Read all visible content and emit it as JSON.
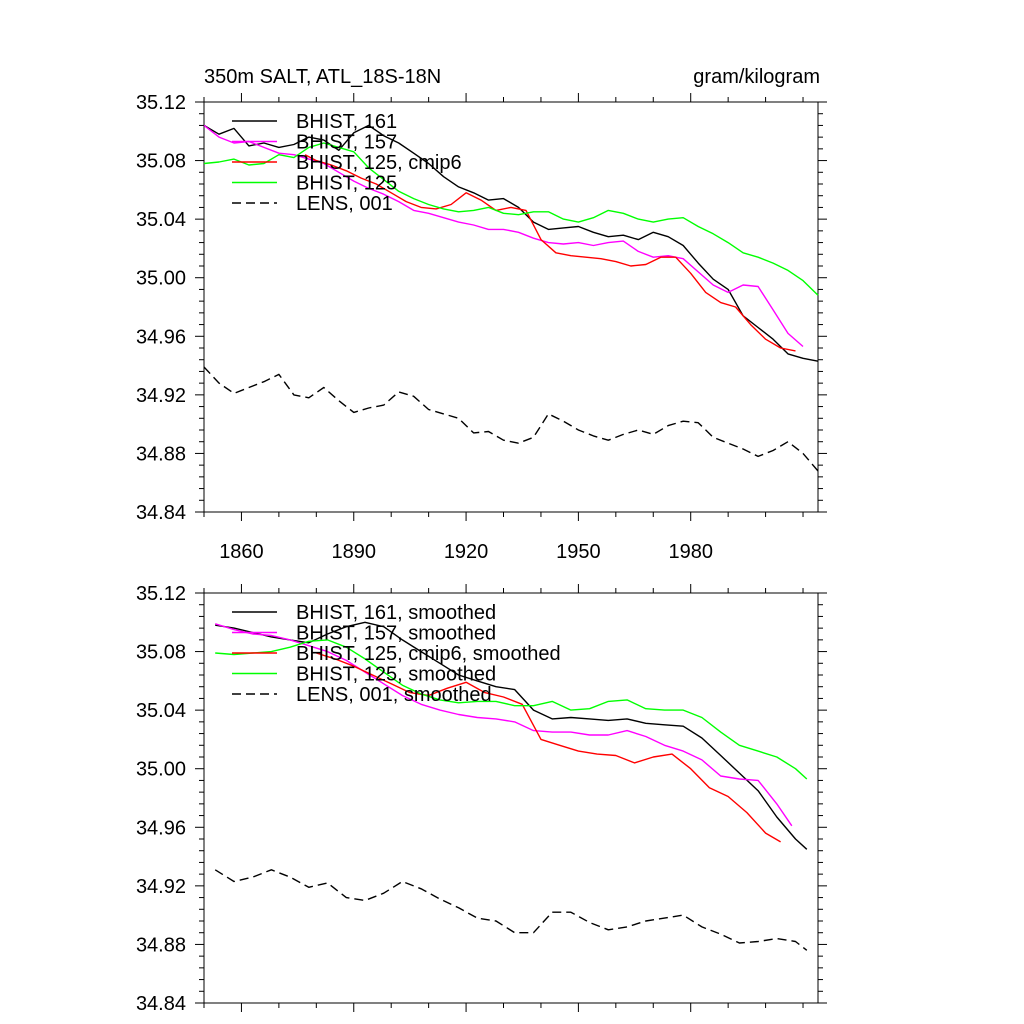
{
  "chart_data": [
    {
      "type": "line",
      "title": "350m SALT, ATL_18S-18N",
      "units": "gram/kilogram",
      "xlim": [
        1850,
        2014
      ],
      "ylim": [
        34.84,
        35.12
      ],
      "x_ticks": [
        1860,
        1890,
        1920,
        1950,
        1980
      ],
      "x_tick_labels": [
        "1860",
        "1890",
        "1920",
        "1950",
        "1980"
      ],
      "y_ticks": [
        34.84,
        34.88,
        34.92,
        34.96,
        35.0,
        35.04,
        35.08,
        35.12
      ],
      "y_tick_labels": [
        "34.84",
        "34.88",
        "34.92",
        "34.96",
        "35.00",
        "35.04",
        "35.08",
        "35.12"
      ],
      "legend_location": "top-left",
      "series": [
        {
          "name": "BHIST, 161",
          "color": "#000000",
          "dash": "solid",
          "x": [
            1850,
            1854,
            1858,
            1862,
            1866,
            1870,
            1874,
            1878,
            1882,
            1886,
            1890,
            1894,
            1898,
            1902,
            1906,
            1910,
            1914,
            1918,
            1922,
            1926,
            1930,
            1934,
            1938,
            1942,
            1946,
            1950,
            1954,
            1958,
            1962,
            1966,
            1970,
            1974,
            1978,
            1982,
            1986,
            1990,
            1994,
            1998,
            2002,
            2006,
            2010,
            2014
          ],
          "values": [
            35.104,
            35.098,
            35.102,
            35.09,
            35.092,
            35.089,
            35.091,
            35.096,
            35.094,
            35.087,
            35.099,
            35.104,
            35.097,
            35.092,
            35.085,
            35.078,
            35.069,
            35.062,
            35.058,
            35.053,
            35.054,
            35.048,
            35.038,
            35.033,
            35.034,
            35.035,
            35.031,
            35.028,
            35.029,
            35.026,
            35.031,
            35.028,
            35.022,
            35.01,
            34.999,
            34.992,
            34.974,
            34.966,
            34.958,
            34.948,
            34.945,
            34.943
          ]
        },
        {
          "name": "BHIST, 157",
          "color": "#ff00ff",
          "dash": "solid",
          "x": [
            1850,
            1854,
            1858,
            1862,
            1866,
            1870,
            1874,
            1878,
            1882,
            1886,
            1890,
            1894,
            1898,
            1902,
            1906,
            1910,
            1914,
            1918,
            1922,
            1926,
            1930,
            1934,
            1938,
            1942,
            1946,
            1950,
            1954,
            1958,
            1962,
            1966,
            1970,
            1974,
            1978,
            1982,
            1986,
            1990,
            1994,
            1998,
            2002,
            2006,
            2010
          ],
          "values": [
            35.104,
            35.096,
            35.092,
            35.093,
            35.089,
            35.085,
            35.084,
            35.081,
            35.078,
            35.072,
            35.066,
            35.061,
            35.057,
            35.052,
            35.046,
            35.044,
            35.041,
            35.038,
            35.036,
            35.033,
            35.033,
            35.031,
            35.027,
            35.024,
            35.023,
            35.024,
            35.022,
            35.024,
            35.025,
            35.018,
            35.014,
            35.015,
            35.013,
            35.004,
            34.995,
            34.99,
            34.995,
            34.994,
            34.978,
            34.962,
            34.953
          ]
        },
        {
          "name": "BHIST, 125, cmip6",
          "color": "#ff0000",
          "dash": "solid",
          "x": [
            1877,
            1880,
            1884,
            1888,
            1892,
            1896,
            1900,
            1904,
            1908,
            1912,
            1916,
            1920,
            1924,
            1928,
            1932,
            1936,
            1940,
            1944,
            1948,
            1952,
            1956,
            1960,
            1964,
            1968,
            1972,
            1976,
            1980,
            1984,
            1988,
            1992,
            1996,
            2000,
            2004,
            2008
          ],
          "values": [
            35.084,
            35.08,
            35.077,
            35.073,
            35.068,
            35.064,
            35.058,
            35.052,
            35.048,
            35.047,
            35.05,
            35.058,
            35.053,
            35.046,
            35.048,
            35.046,
            35.026,
            35.017,
            35.015,
            35.014,
            35.013,
            35.011,
            35.008,
            35.009,
            35.014,
            35.014,
            35.003,
            34.99,
            34.983,
            34.98,
            34.968,
            34.958,
            34.952,
            34.95
          ]
        },
        {
          "name": "BHIST, 125",
          "color": "#00ff00",
          "dash": "solid",
          "x": [
            1850,
            1854,
            1858,
            1862,
            1866,
            1870,
            1874,
            1878,
            1882,
            1886,
            1890,
            1894,
            1898,
            1902,
            1906,
            1910,
            1914,
            1918,
            1922,
            1926,
            1930,
            1934,
            1938,
            1942,
            1946,
            1950,
            1954,
            1958,
            1962,
            1966,
            1970,
            1974,
            1978,
            1982,
            1986,
            1990,
            1994,
            1998,
            2002,
            2006,
            2010,
            2014
          ],
          "values": [
            35.078,
            35.079,
            35.081,
            35.077,
            35.078,
            35.084,
            35.082,
            35.089,
            35.092,
            35.089,
            35.086,
            35.075,
            35.067,
            35.059,
            35.054,
            35.05,
            35.047,
            35.045,
            35.046,
            35.048,
            35.044,
            35.043,
            35.045,
            35.045,
            35.04,
            35.038,
            35.041,
            35.046,
            35.044,
            35.04,
            35.038,
            35.04,
            35.041,
            35.035,
            35.03,
            35.024,
            35.017,
            35.014,
            35.01,
            35.005,
            34.998,
            34.988
          ]
        },
        {
          "name": "LENS, 001",
          "color": "#000000",
          "dash": "dashed",
          "x": [
            1850,
            1854,
            1858,
            1862,
            1866,
            1870,
            1874,
            1878,
            1882,
            1886,
            1890,
            1894,
            1898,
            1902,
            1906,
            1910,
            1914,
            1918,
            1922,
            1926,
            1930,
            1934,
            1938,
            1942,
            1946,
            1950,
            1954,
            1958,
            1962,
            1966,
            1970,
            1974,
            1978,
            1982,
            1986,
            1990,
            1994,
            1998,
            2002,
            2006,
            2010,
            2014
          ],
          "values": [
            34.939,
            34.928,
            34.921,
            34.925,
            34.929,
            34.934,
            34.92,
            34.918,
            34.925,
            34.916,
            34.908,
            34.911,
            34.913,
            34.922,
            34.919,
            34.91,
            34.907,
            34.904,
            34.894,
            34.895,
            34.889,
            34.887,
            34.891,
            34.907,
            34.902,
            34.896,
            34.892,
            34.889,
            34.893,
            34.896,
            34.893,
            34.899,
            34.902,
            34.901,
            34.891,
            34.887,
            34.883,
            34.878,
            34.882,
            34.888,
            34.88,
            34.868
          ]
        }
      ]
    },
    {
      "type": "line",
      "title": "",
      "units": "",
      "xlim": [
        1850,
        2014
      ],
      "ylim": [
        34.84,
        35.12
      ],
      "x_ticks": [
        1860,
        1890,
        1920,
        1950,
        1980
      ],
      "x_tick_labels": [],
      "y_ticks": [
        34.84,
        34.88,
        34.92,
        34.96,
        35.0,
        35.04,
        35.08,
        35.12
      ],
      "y_tick_labels": [
        "34.84",
        "34.88",
        "34.92",
        "34.96",
        "35.00",
        "35.04",
        "35.08",
        "35.12"
      ],
      "legend_location": "top-left",
      "series": [
        {
          "name": "BHIST, 161, smoothed",
          "color": "#000000",
          "dash": "solid",
          "x": [
            1853,
            1858,
            1863,
            1868,
            1873,
            1878,
            1883,
            1888,
            1893,
            1898,
            1903,
            1908,
            1913,
            1918,
            1923,
            1928,
            1933,
            1938,
            1943,
            1948,
            1953,
            1958,
            1963,
            1968,
            1973,
            1978,
            1983,
            1988,
            1993,
            1998,
            2003,
            2008,
            2011
          ],
          "values": [
            35.098,
            35.096,
            35.093,
            35.09,
            35.088,
            35.086,
            35.092,
            35.097,
            35.1,
            35.097,
            35.088,
            35.08,
            35.072,
            35.064,
            35.06,
            35.056,
            35.054,
            35.04,
            35.034,
            35.035,
            35.034,
            35.033,
            35.034,
            35.031,
            35.03,
            35.029,
            35.021,
            35.009,
            34.997,
            34.985,
            34.967,
            34.952,
            34.945
          ]
        },
        {
          "name": "BHIST, 157, smoothed",
          "color": "#ff00ff",
          "dash": "solid",
          "x": [
            1853,
            1858,
            1863,
            1868,
            1873,
            1878,
            1883,
            1888,
            1893,
            1898,
            1903,
            1908,
            1913,
            1918,
            1923,
            1928,
            1933,
            1938,
            1943,
            1948,
            1953,
            1958,
            1963,
            1968,
            1973,
            1978,
            1983,
            1988,
            1993,
            1998,
            2003,
            2007
          ],
          "values": [
            35.099,
            35.095,
            35.092,
            35.091,
            35.088,
            35.084,
            35.08,
            35.074,
            35.066,
            35.058,
            35.05,
            35.044,
            35.04,
            35.037,
            35.035,
            35.034,
            35.032,
            35.026,
            35.025,
            35.025,
            35.023,
            35.023,
            35.026,
            35.022,
            35.016,
            35.012,
            35.006,
            34.995,
            34.993,
            34.992,
            34.976,
            34.961
          ]
        },
        {
          "name": "BHIST, 125, cmip6, smoothed",
          "color": "#ff0000",
          "dash": "solid",
          "x": [
            1880,
            1885,
            1890,
            1895,
            1900,
            1905,
            1910,
            1915,
            1920,
            1925,
            1930,
            1935,
            1940,
            1945,
            1950,
            1955,
            1960,
            1965,
            1970,
            1975,
            1980,
            1985,
            1990,
            1995,
            2000,
            2004
          ],
          "values": [
            35.079,
            35.075,
            35.07,
            35.064,
            35.058,
            35.052,
            35.05,
            35.055,
            35.059,
            35.052,
            35.049,
            35.044,
            35.02,
            35.016,
            35.012,
            35.01,
            35.009,
            35.004,
            35.008,
            35.01,
            35.0,
            34.987,
            34.981,
            34.97,
            34.956,
            34.95
          ]
        },
        {
          "name": "BHIST, 125, smoothed",
          "color": "#00ff00",
          "dash": "solid",
          "x": [
            1853,
            1858,
            1863,
            1868,
            1873,
            1878,
            1883,
            1888,
            1893,
            1898,
            1903,
            1908,
            1913,
            1918,
            1923,
            1928,
            1933,
            1938,
            1943,
            1948,
            1953,
            1958,
            1963,
            1968,
            1973,
            1978,
            1983,
            1988,
            1993,
            1998,
            2003,
            2008,
            2011
          ],
          "values": [
            35.079,
            35.078,
            35.079,
            35.08,
            35.083,
            35.087,
            35.088,
            35.083,
            35.075,
            35.066,
            35.057,
            35.051,
            35.047,
            35.045,
            35.046,
            35.046,
            35.043,
            35.043,
            35.046,
            35.04,
            35.041,
            35.046,
            35.047,
            35.041,
            35.04,
            35.04,
            35.035,
            35.025,
            35.016,
            35.012,
            35.008,
            35.0,
            34.993
          ]
        },
        {
          "name": "LENS, 001, smoothed",
          "color": "#000000",
          "dash": "dashed",
          "x": [
            1853,
            1858,
            1863,
            1868,
            1873,
            1878,
            1883,
            1888,
            1893,
            1898,
            1903,
            1908,
            1913,
            1918,
            1923,
            1928,
            1933,
            1938,
            1943,
            1948,
            1953,
            1958,
            1963,
            1968,
            1973,
            1978,
            1983,
            1988,
            1993,
            1998,
            2003,
            2008,
            2011
          ],
          "values": [
            34.931,
            34.923,
            34.926,
            34.931,
            34.926,
            34.919,
            34.922,
            34.912,
            34.91,
            34.915,
            34.923,
            34.918,
            34.911,
            34.905,
            34.898,
            34.896,
            34.888,
            34.888,
            34.902,
            34.902,
            34.895,
            34.89,
            34.892,
            34.896,
            34.898,
            34.9,
            34.892,
            34.887,
            34.881,
            34.882,
            34.884,
            34.882,
            34.876
          ]
        }
      ]
    }
  ]
}
